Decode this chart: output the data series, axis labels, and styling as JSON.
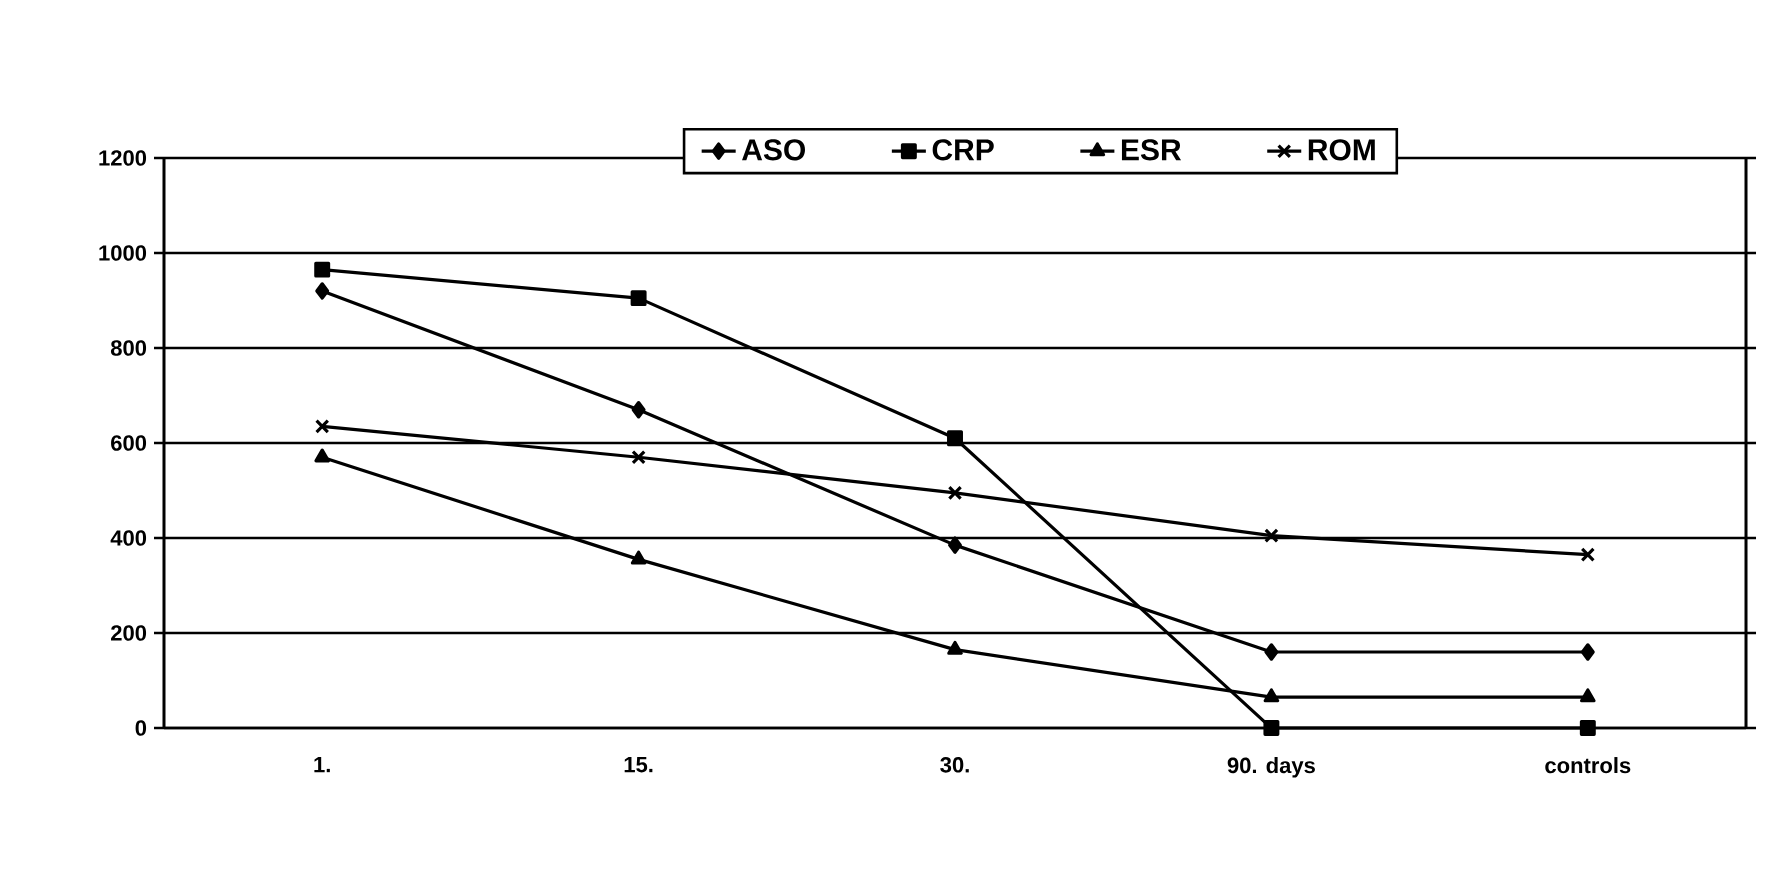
{
  "chart_data": {
    "type": "line",
    "categories": [
      "1.",
      "15.",
      "30.",
      "90. days",
      "controls"
    ],
    "series": [
      {
        "name": "ASO",
        "color": "#000000",
        "marker": "diamond",
        "values": [
          920,
          670,
          385,
          160,
          160
        ]
      },
      {
        "name": "CRP",
        "color": "#000000",
        "marker": "square",
        "values": [
          965,
          905,
          610,
          0,
          0
        ]
      },
      {
        "name": "ESR",
        "color": "#000000",
        "marker": "triangle",
        "values": [
          570,
          355,
          165,
          65,
          65
        ]
      },
      {
        "name": "ROM",
        "color": "#000000",
        "marker": "cross",
        "values": [
          635,
          570,
          495,
          405,
          365
        ]
      }
    ],
    "ylim": [
      0,
      1200
    ],
    "yticks": [
      0,
      200,
      400,
      600,
      800,
      1000,
      1200
    ],
    "grid": "y",
    "legend": "top"
  }
}
